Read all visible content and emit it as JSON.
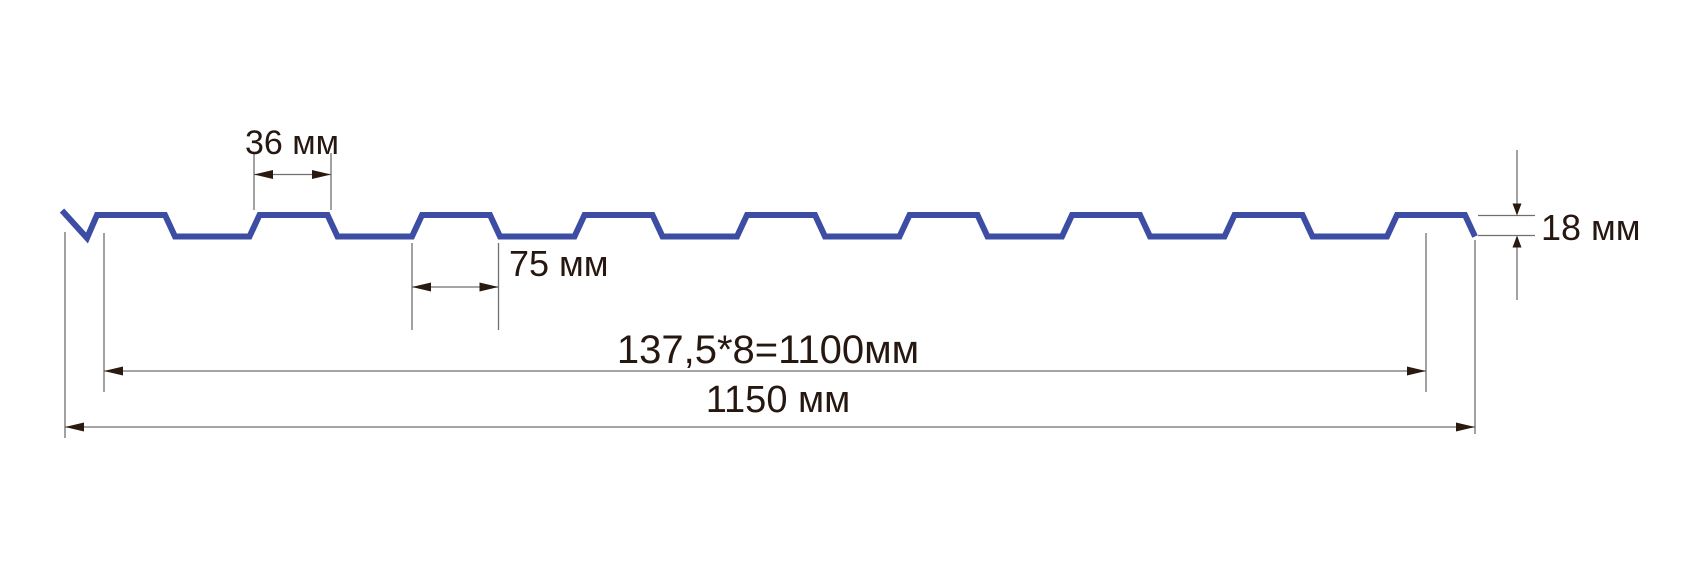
{
  "colors": {
    "background": "#ffffff",
    "sheet_line": "#3d4da4",
    "dimension_line": "#6f6f6f",
    "arrow": "#2a190f",
    "text": "#261811"
  },
  "diagram": {
    "type": "profiled-sheet-cross-section",
    "labels": {
      "rib_top_width": "36 мм",
      "rib_base_width": "75 мм",
      "working_width": "137,5*8=1100мм",
      "overall_width": "1150 мм",
      "profile_height": "18 мм"
    },
    "values": {
      "rib_top_width_mm": 36,
      "rib_base_width_mm": 75,
      "module_mm": 137.5,
      "module_count": 8,
      "working_width_mm": 1100,
      "overall_width_mm": 1150,
      "profile_height_mm": 18
    }
  }
}
